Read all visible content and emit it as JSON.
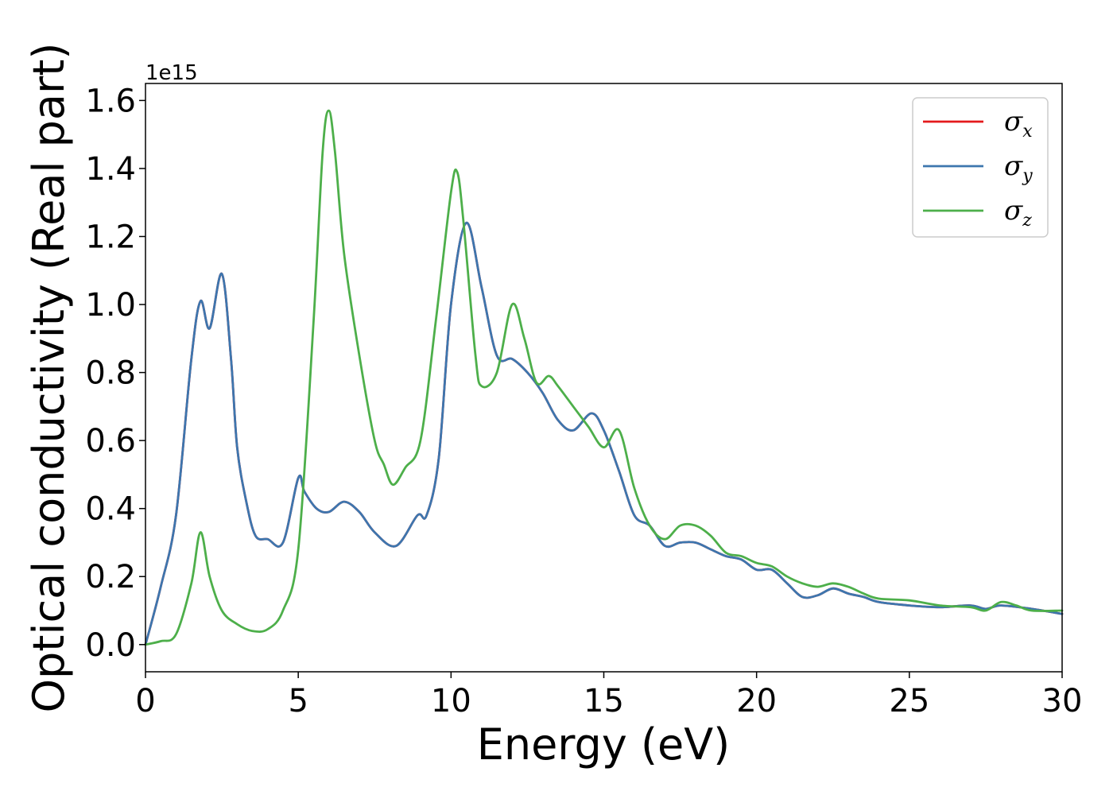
{
  "chart_data": {
    "type": "line",
    "title": "",
    "xlabel": "Energy (eV)",
    "ylabel": "Optical conductivity (Real part)",
    "y_offset_label": "1e15",
    "xlim": [
      0,
      30
    ],
    "ylim": [
      -0.08,
      1.65
    ],
    "xticks": [
      "0",
      "5",
      "10",
      "15",
      "20",
      "25",
      "30"
    ],
    "xtick_values": [
      0,
      5,
      10,
      15,
      20,
      25,
      30
    ],
    "yticks": [
      "0.0",
      "0.2",
      "0.4",
      "0.6",
      "0.8",
      "1.0",
      "1.2",
      "1.4",
      "1.6"
    ],
    "ytick_values": [
      0.0,
      0.2,
      0.4,
      0.6,
      0.8,
      1.0,
      1.2,
      1.4,
      1.6
    ],
    "grid": false,
    "legend_position": "top-right",
    "series": [
      {
        "name": "σx",
        "legend_symbol": "σ",
        "legend_sub": "x",
        "color": "#e41a1c",
        "x": [
          0,
          0.5,
          1.0,
          1.5,
          1.8,
          2.1,
          2.5,
          2.8,
          3.0,
          3.3,
          3.6,
          4.0,
          4.5,
          5.0,
          5.2,
          5.6,
          6.0,
          6.5,
          7.0,
          7.5,
          8.2,
          8.9,
          9.2,
          9.6,
          10.0,
          10.5,
          11.0,
          11.5,
          12.0,
          12.5,
          13.0,
          13.5,
          14.0,
          14.6,
          15.0,
          15.5,
          16.0,
          16.5,
          17.0,
          17.5,
          18.0,
          18.5,
          19.0,
          19.5,
          20.0,
          20.5,
          21.0,
          21.5,
          22.0,
          22.5,
          23.0,
          23.5,
          24.0,
          25.0,
          26.0,
          27.0,
          27.5,
          28.0,
          29.0,
          30.0
        ],
        "y": [
          0.0,
          0.17,
          0.38,
          0.84,
          1.01,
          0.93,
          1.09,
          0.84,
          0.58,
          0.42,
          0.32,
          0.31,
          0.3,
          0.49,
          0.45,
          0.4,
          0.39,
          0.42,
          0.39,
          0.33,
          0.29,
          0.38,
          0.38,
          0.55,
          1.0,
          1.24,
          1.05,
          0.85,
          0.84,
          0.8,
          0.74,
          0.66,
          0.63,
          0.68,
          0.63,
          0.51,
          0.38,
          0.35,
          0.29,
          0.3,
          0.3,
          0.28,
          0.26,
          0.25,
          0.22,
          0.22,
          0.18,
          0.14,
          0.145,
          0.165,
          0.15,
          0.14,
          0.125,
          0.115,
          0.11,
          0.115,
          0.105,
          0.115,
          0.105,
          0.09
        ]
      },
      {
        "name": "σy",
        "legend_symbol": "σ",
        "legend_sub": "y",
        "color": "#3d76ae",
        "x": [
          0,
          0.5,
          1.0,
          1.5,
          1.8,
          2.1,
          2.5,
          2.8,
          3.0,
          3.3,
          3.6,
          4.0,
          4.5,
          5.0,
          5.2,
          5.6,
          6.0,
          6.5,
          7.0,
          7.5,
          8.2,
          8.9,
          9.2,
          9.6,
          10.0,
          10.5,
          11.0,
          11.5,
          12.0,
          12.5,
          13.0,
          13.5,
          14.0,
          14.6,
          15.0,
          15.5,
          16.0,
          16.5,
          17.0,
          17.5,
          18.0,
          18.5,
          19.0,
          19.5,
          20.0,
          20.5,
          21.0,
          21.5,
          22.0,
          22.5,
          23.0,
          23.5,
          24.0,
          25.0,
          26.0,
          27.0,
          27.5,
          28.0,
          29.0,
          30.0
        ],
        "y": [
          0.0,
          0.17,
          0.38,
          0.84,
          1.01,
          0.93,
          1.09,
          0.84,
          0.58,
          0.42,
          0.32,
          0.31,
          0.3,
          0.49,
          0.45,
          0.4,
          0.39,
          0.42,
          0.39,
          0.33,
          0.29,
          0.38,
          0.38,
          0.55,
          1.0,
          1.24,
          1.05,
          0.85,
          0.84,
          0.8,
          0.74,
          0.66,
          0.63,
          0.68,
          0.63,
          0.51,
          0.38,
          0.35,
          0.29,
          0.3,
          0.3,
          0.28,
          0.26,
          0.25,
          0.22,
          0.22,
          0.18,
          0.14,
          0.145,
          0.165,
          0.15,
          0.14,
          0.125,
          0.115,
          0.11,
          0.115,
          0.105,
          0.115,
          0.105,
          0.09
        ]
      },
      {
        "name": "σz",
        "legend_symbol": "σ",
        "legend_sub": "z",
        "color": "#4daf4a",
        "x": [
          0,
          0.5,
          1.0,
          1.5,
          1.8,
          2.1,
          2.5,
          3.0,
          3.5,
          4.0,
          4.5,
          5.0,
          5.5,
          5.8,
          6.0,
          6.2,
          6.5,
          7.0,
          7.5,
          7.8,
          8.1,
          8.5,
          9.0,
          9.5,
          10.0,
          10.2,
          10.4,
          10.8,
          11.0,
          11.5,
          12.0,
          12.4,
          12.8,
          13.2,
          13.5,
          14.0,
          14.5,
          15.0,
          15.5,
          16.0,
          16.5,
          17.0,
          17.5,
          18.0,
          18.5,
          19.0,
          19.5,
          20.0,
          20.5,
          21.0,
          21.5,
          22.0,
          22.5,
          23.0,
          23.5,
          24.0,
          25.0,
          26.0,
          27.0,
          27.5,
          28.0,
          28.5,
          29.0,
          30.0
        ],
        "y": [
          0.0,
          0.01,
          0.03,
          0.18,
          0.33,
          0.2,
          0.1,
          0.06,
          0.04,
          0.045,
          0.1,
          0.28,
          0.95,
          1.45,
          1.57,
          1.45,
          1.15,
          0.85,
          0.6,
          0.53,
          0.47,
          0.52,
          0.6,
          0.95,
          1.33,
          1.39,
          1.25,
          0.85,
          0.76,
          0.8,
          1.0,
          0.9,
          0.77,
          0.79,
          0.76,
          0.7,
          0.64,
          0.58,
          0.63,
          0.46,
          0.35,
          0.31,
          0.35,
          0.35,
          0.32,
          0.27,
          0.26,
          0.24,
          0.23,
          0.2,
          0.18,
          0.17,
          0.18,
          0.17,
          0.15,
          0.135,
          0.13,
          0.115,
          0.11,
          0.1,
          0.125,
          0.115,
          0.1,
          0.1
        ]
      }
    ]
  }
}
